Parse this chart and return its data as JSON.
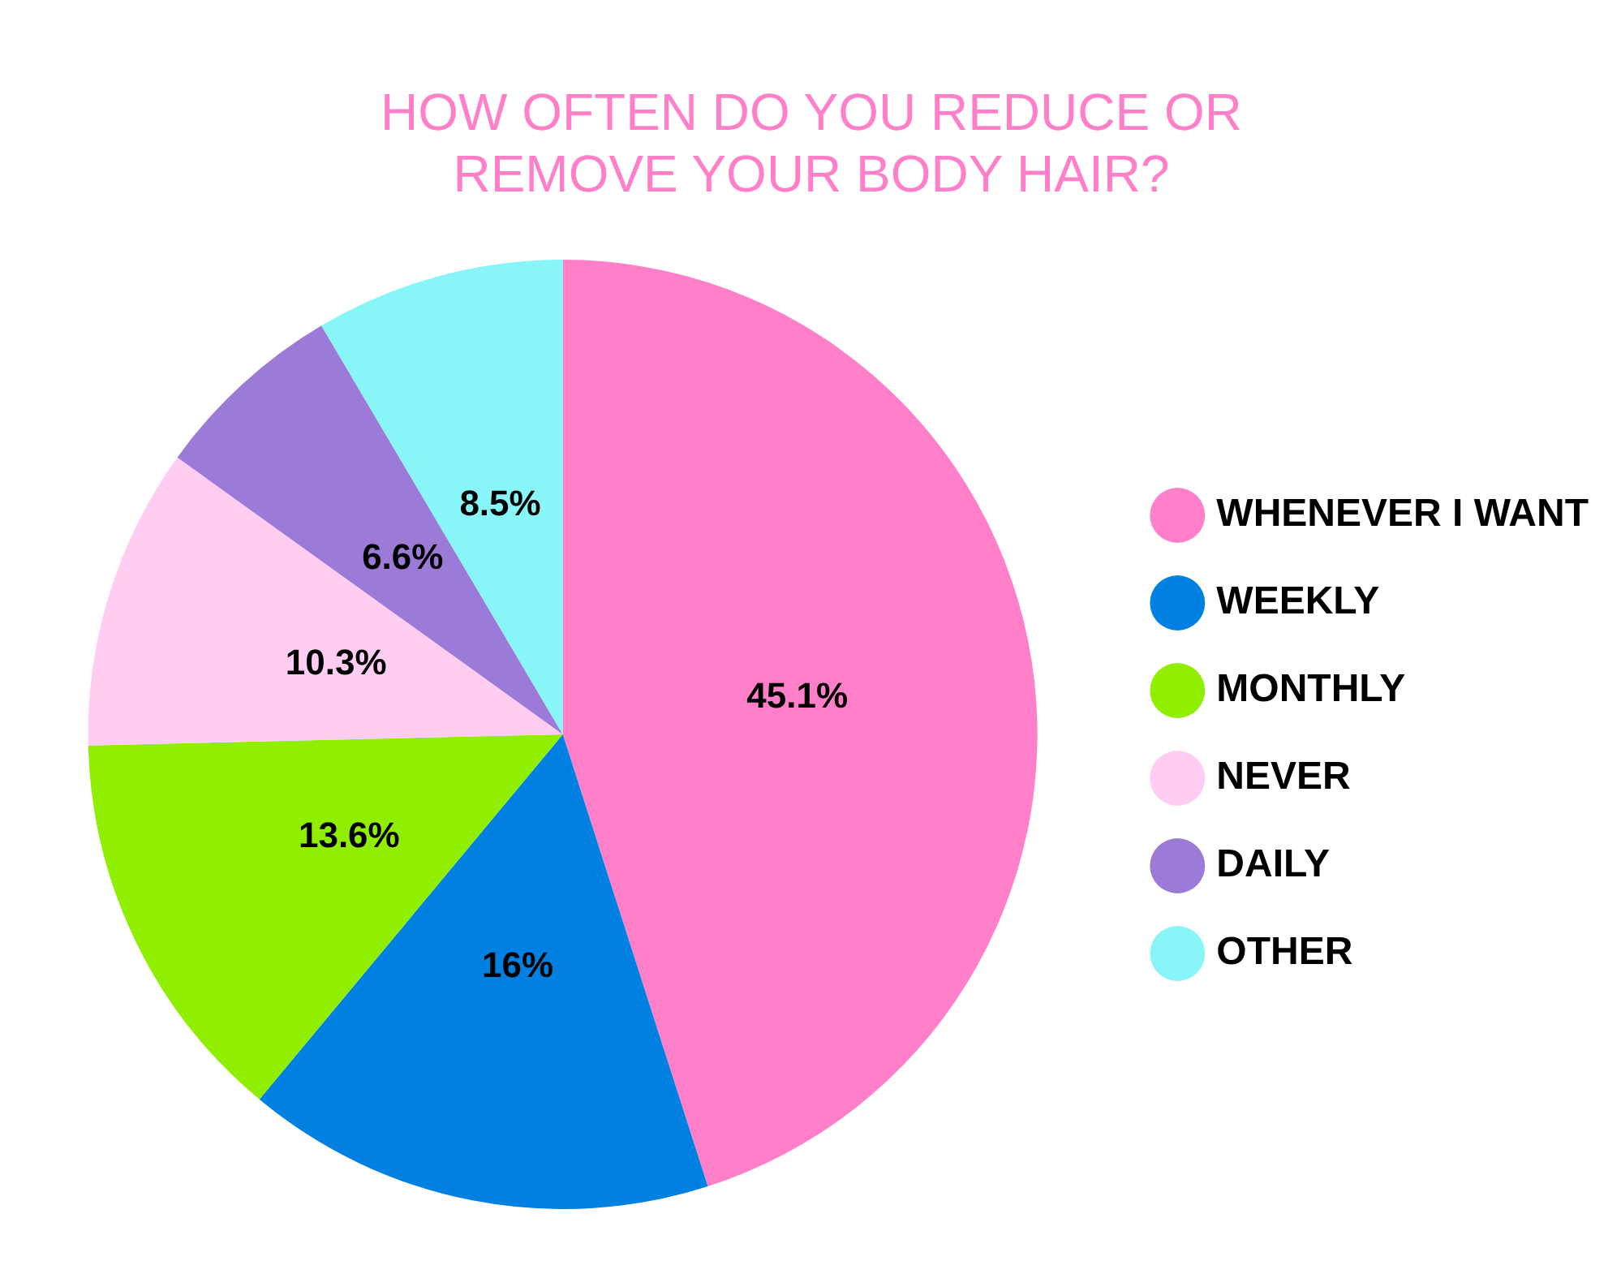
{
  "chart_data": {
    "type": "pie",
    "title": "HOW OFTEN DO YOU REDUCE OR REMOVE YOUR BODY HAIR?",
    "categories": [
      "WHENEVER I WANT",
      "WEEKLY",
      "MONTHLY",
      "NEVER",
      "DAILY",
      "OTHER"
    ],
    "values": [
      45.1,
      16,
      13.6,
      10.3,
      6.6,
      8.5
    ],
    "value_labels": [
      "45.1%",
      "16%",
      "13.6%",
      "10.3%",
      "6.6%",
      "8.5%"
    ],
    "colors": [
      "#ff80c8",
      "#0080e0",
      "#90ee00",
      "#ffccf2",
      "#9b7ad8",
      "#88f6f8"
    ],
    "legend": "right"
  }
}
